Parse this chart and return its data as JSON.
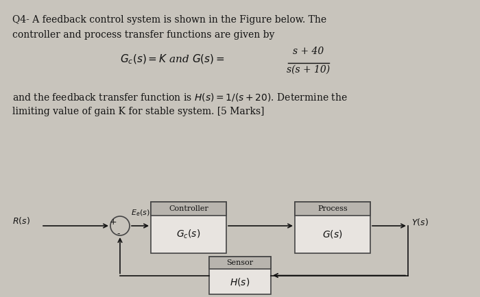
{
  "bg_color": "#c8c4bc",
  "box_bg": "#e8e4e0",
  "box_header_bg": "#b8b4ae",
  "box_edge": "#444444",
  "text_color": "#111111",
  "arrow_color": "#111111",
  "line_color": "#111111",
  "title_line1": "Q4- A feedback control system is shown in the Figure below. The",
  "title_line2": "controller and process transfer functions are given by",
  "body_line1": "and the feedback transfer function is $H(s) = 1/(s + 20)$. Determine the",
  "body_line2": "limiting value of gain K for stable system. [5 Marks]",
  "formula_numerator": "s + 40",
  "formula_denominator": "s(s + 10)",
  "formula_prefix": "$G_c(s) = K$ and $G(s) =$",
  "ctrl_label": "Controller",
  "ctrl_tf": "$G_c(s)$",
  "proc_label": "Process",
  "proc_tf": "$G(s)$",
  "sens_label": "Sensor",
  "sens_tf": "$H(s)$",
  "input_label": "$R(s)$",
  "output_label": "$Y(s)$",
  "error_label": "$E_e(s)$",
  "plus_sign": "+",
  "minus_sign": "-"
}
